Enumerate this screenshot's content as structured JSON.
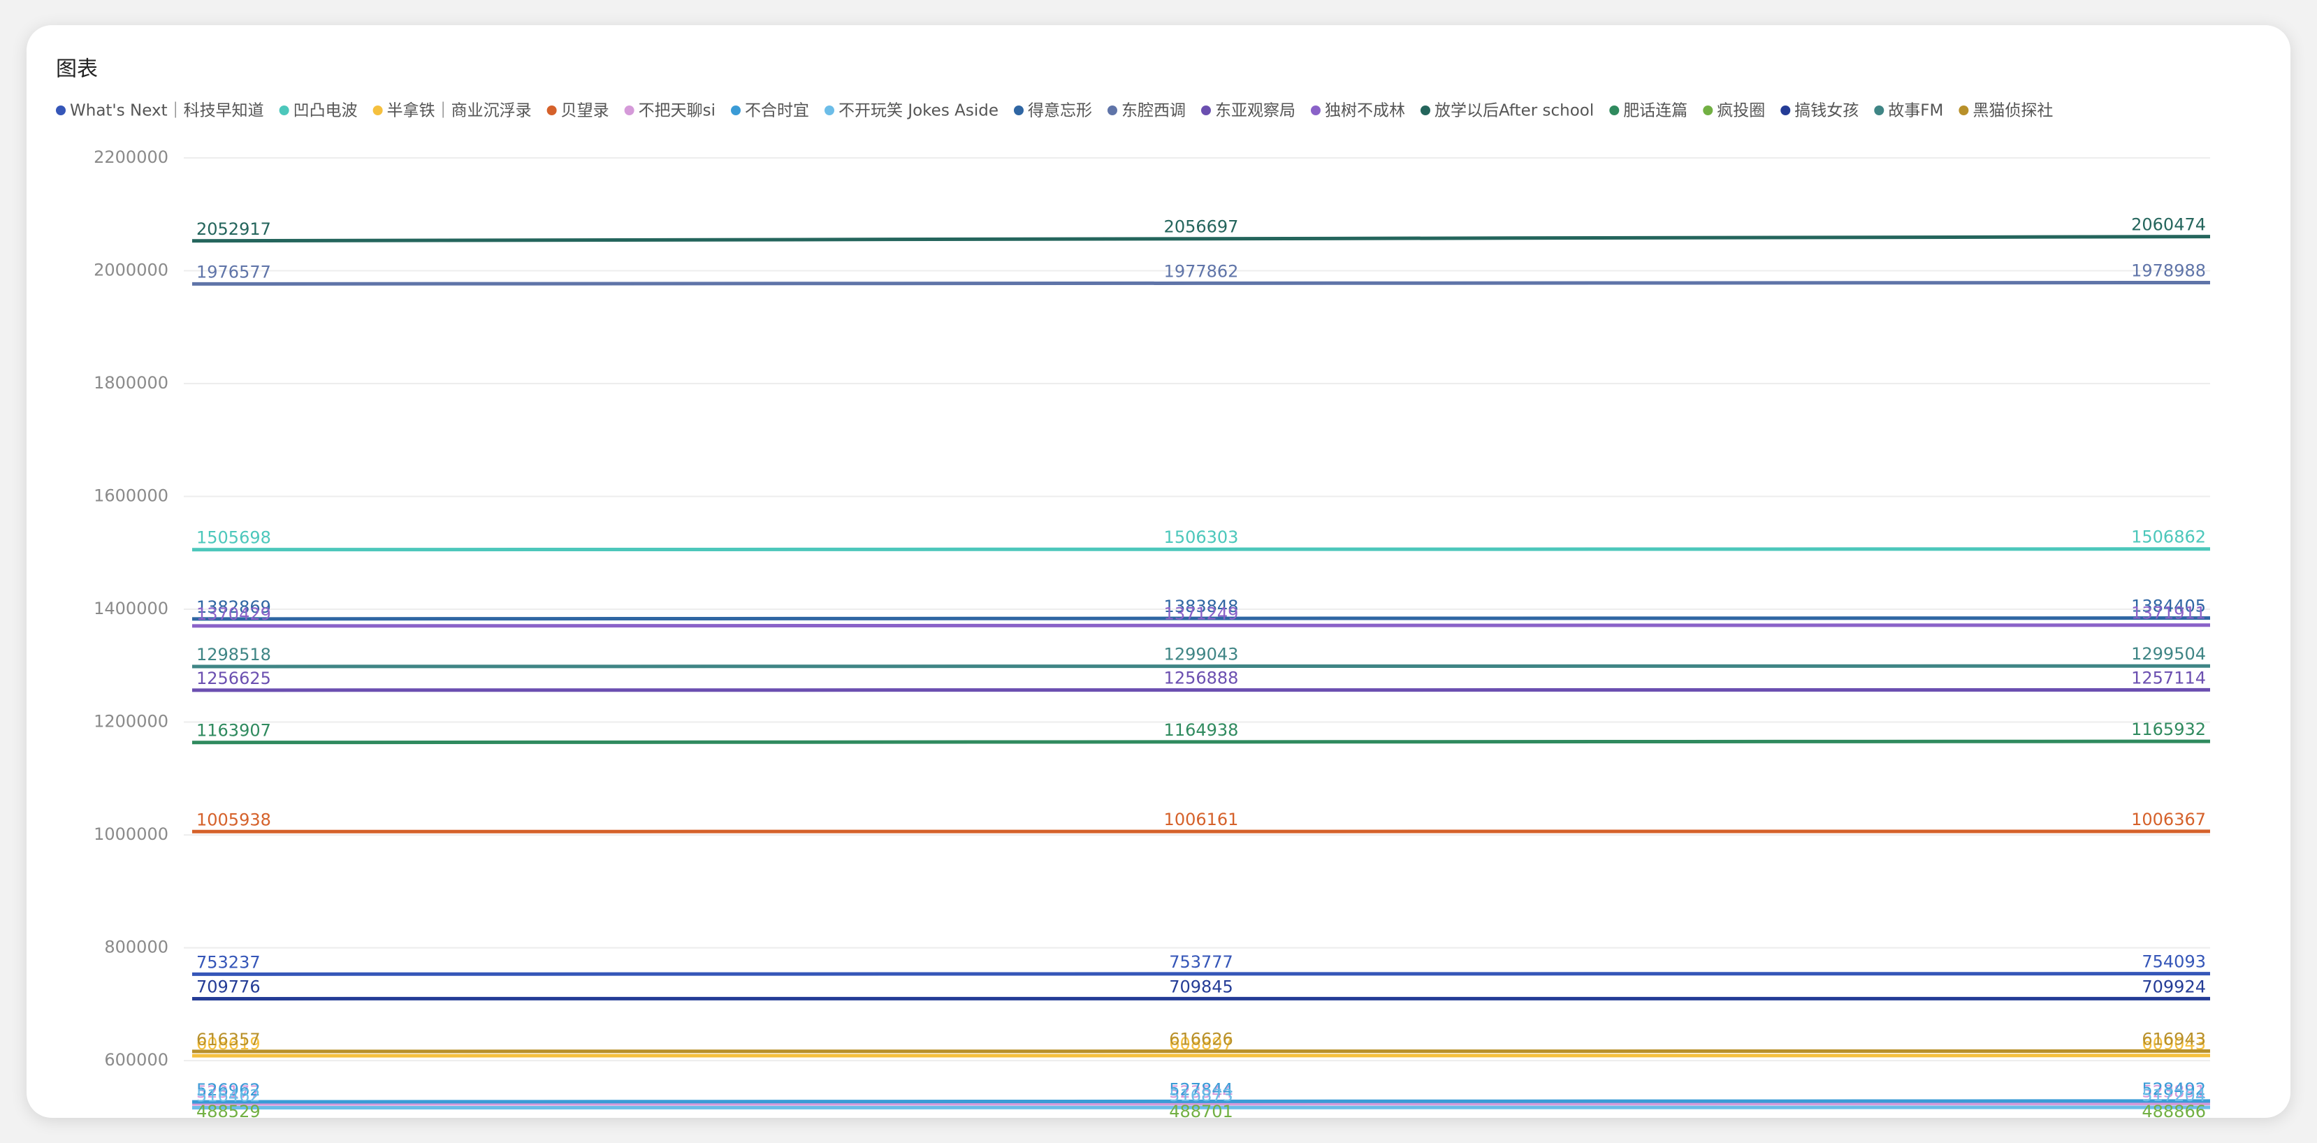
{
  "chart_data": {
    "type": "line",
    "title": "图表",
    "categories": [
      null,
      null,
      null
    ],
    "ylim": [
      480000,
      2200000
    ],
    "yticks": [
      600000,
      800000,
      1000000,
      1200000,
      1400000,
      1600000,
      1800000,
      2000000,
      2200000
    ],
    "grid": true,
    "series": [
      {
        "name": "What's Next｜科技早知道",
        "color": "#3556b8",
        "values": [
          753237,
          753777,
          754093
        ]
      },
      {
        "name": "凹凸电波",
        "color": "#4cc7bb",
        "values": [
          1505698,
          1506303,
          1506862
        ]
      },
      {
        "name": "半拿铁｜商业沉浮录",
        "color": "#f5c03e",
        "values": [
          608619,
          608897,
          609043
        ]
      },
      {
        "name": "贝望录",
        "color": "#d5612a",
        "values": [
          1005938,
          1006161,
          1006367
        ]
      },
      {
        "name": "不把天聊si",
        "color": "#d59ad9",
        "values": [
          523177,
          523544,
          523891
        ]
      },
      {
        "name": "不合时宜",
        "color": "#3a9bd6",
        "values": [
          526962,
          527844,
          528492
        ]
      },
      {
        "name": "不开玩笑 Jokes Aside",
        "color": "#6cbde8",
        "values": [
          516462,
          516873,
          517204
        ]
      },
      {
        "name": "得意忘形",
        "color": "#2f66a3",
        "values": [
          1382869,
          1383848,
          1384405
        ]
      },
      {
        "name": "东腔西调",
        "color": "#5f74a8",
        "values": [
          1976577,
          1977862,
          1978988
        ]
      },
      {
        "name": "东亚观察局",
        "color": "#6b4fb0",
        "values": [
          1256625,
          1256888,
          1257114
        ]
      },
      {
        "name": "独树不成林",
        "color": "#8a62c8",
        "values": [
          1370429,
          1371249,
          1371911
        ]
      },
      {
        "name": "放学以后After school",
        "color": "#24655c",
        "values": [
          2052917,
          2056697,
          2060474
        ]
      },
      {
        "name": "肥话连篇",
        "color": "#2f8a5e",
        "values": [
          1163907,
          1164938,
          1165932
        ]
      },
      {
        "name": "疯投圈",
        "color": "#72b043",
        "values": [
          488529,
          488701,
          488866
        ]
      },
      {
        "name": "搞钱女孩",
        "color": "#243c96",
        "values": [
          709776,
          709845,
          709924
        ]
      },
      {
        "name": "故事FM",
        "color": "#3f8585",
        "values": [
          1298518,
          1299043,
          1299504
        ]
      },
      {
        "name": "黑猫侦探社",
        "color": "#b8902a",
        "values": [
          616357,
          616626,
          616943
        ]
      }
    ]
  }
}
